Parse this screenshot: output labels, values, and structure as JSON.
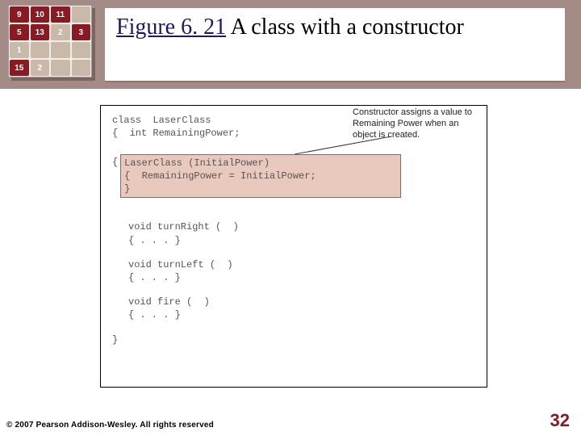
{
  "title": {
    "number": "Figure 6. 21",
    "desc": "  A class with a constructor",
    "number_color": "#1a1a6a",
    "fontsize": 28
  },
  "thumbnail": {
    "rows": [
      [
        {
          "n": "9",
          "c": "#8a1a22"
        },
        {
          "n": "10",
          "c": "#8a1a22"
        },
        {
          "n": "11",
          "c": "#8a1a22"
        },
        {
          "n": "",
          "c": "#c9b9a8"
        }
      ],
      [
        {
          "n": "5",
          "c": "#8a1a22"
        },
        {
          "n": "13",
          "c": "#8a1a22"
        },
        {
          "n": "2",
          "c": "#c9b9a8"
        },
        {
          "n": "3",
          "c": "#8a1a22"
        }
      ],
      [
        {
          "n": "1",
          "c": "#c9b9a8"
        },
        {
          "n": "",
          "c": "#c9b9a8"
        },
        {
          "n": "",
          "c": "#c9b9a8"
        },
        {
          "n": "",
          "c": "#c9b9a8"
        }
      ],
      [
        {
          "n": "15",
          "c": "#8a1a22"
        },
        {
          "n": "2",
          "c": "#c9b9a8"
        },
        {
          "n": "",
          "c": "#c9b9a8"
        },
        {
          "n": "",
          "c": "#c9b9a8"
        }
      ]
    ]
  },
  "annotation": "Constructor assigns a value to Remaining Power when an object is created.",
  "code": {
    "line1": "class  LaserClass",
    "line2": "{  int RemainingPower;",
    "ctor1": "LaserClass (InitialPower)",
    "ctor2": "{  RemainingPower = InitialPower;",
    "ctor3": "}",
    "m1a": "void turnRight (  )",
    "m1b": "{ . . . }",
    "m2a": "void turnLeft (  )",
    "m2b": "{ . . . }",
    "m3a": "void fire (  )",
    "m3b": "{ . . . }",
    "close": "}"
  },
  "colors": {
    "topbar": "#a58b85",
    "ctor_bg": "#e9c9bd",
    "ctor_border": "#8a6a60",
    "pagenum": "#8a1a22"
  },
  "footer": "© 2007 Pearson Addison-Wesley. All rights reserved",
  "page_number": "32"
}
